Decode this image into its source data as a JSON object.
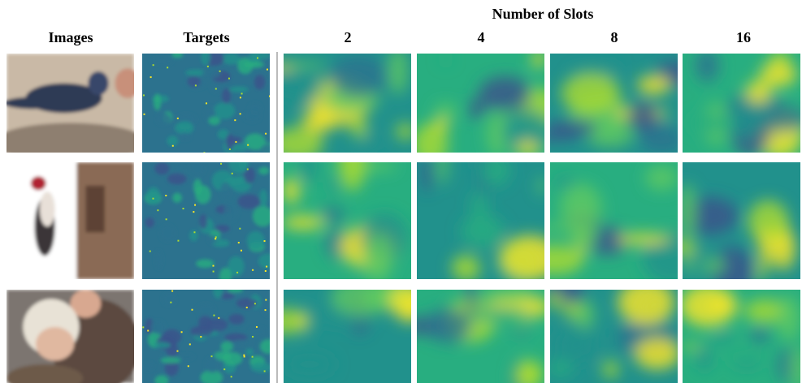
{
  "header": {
    "title": "Number of Slots"
  },
  "columns": [
    "Images",
    "Targets",
    "2",
    "4",
    "8",
    "16"
  ]
}
